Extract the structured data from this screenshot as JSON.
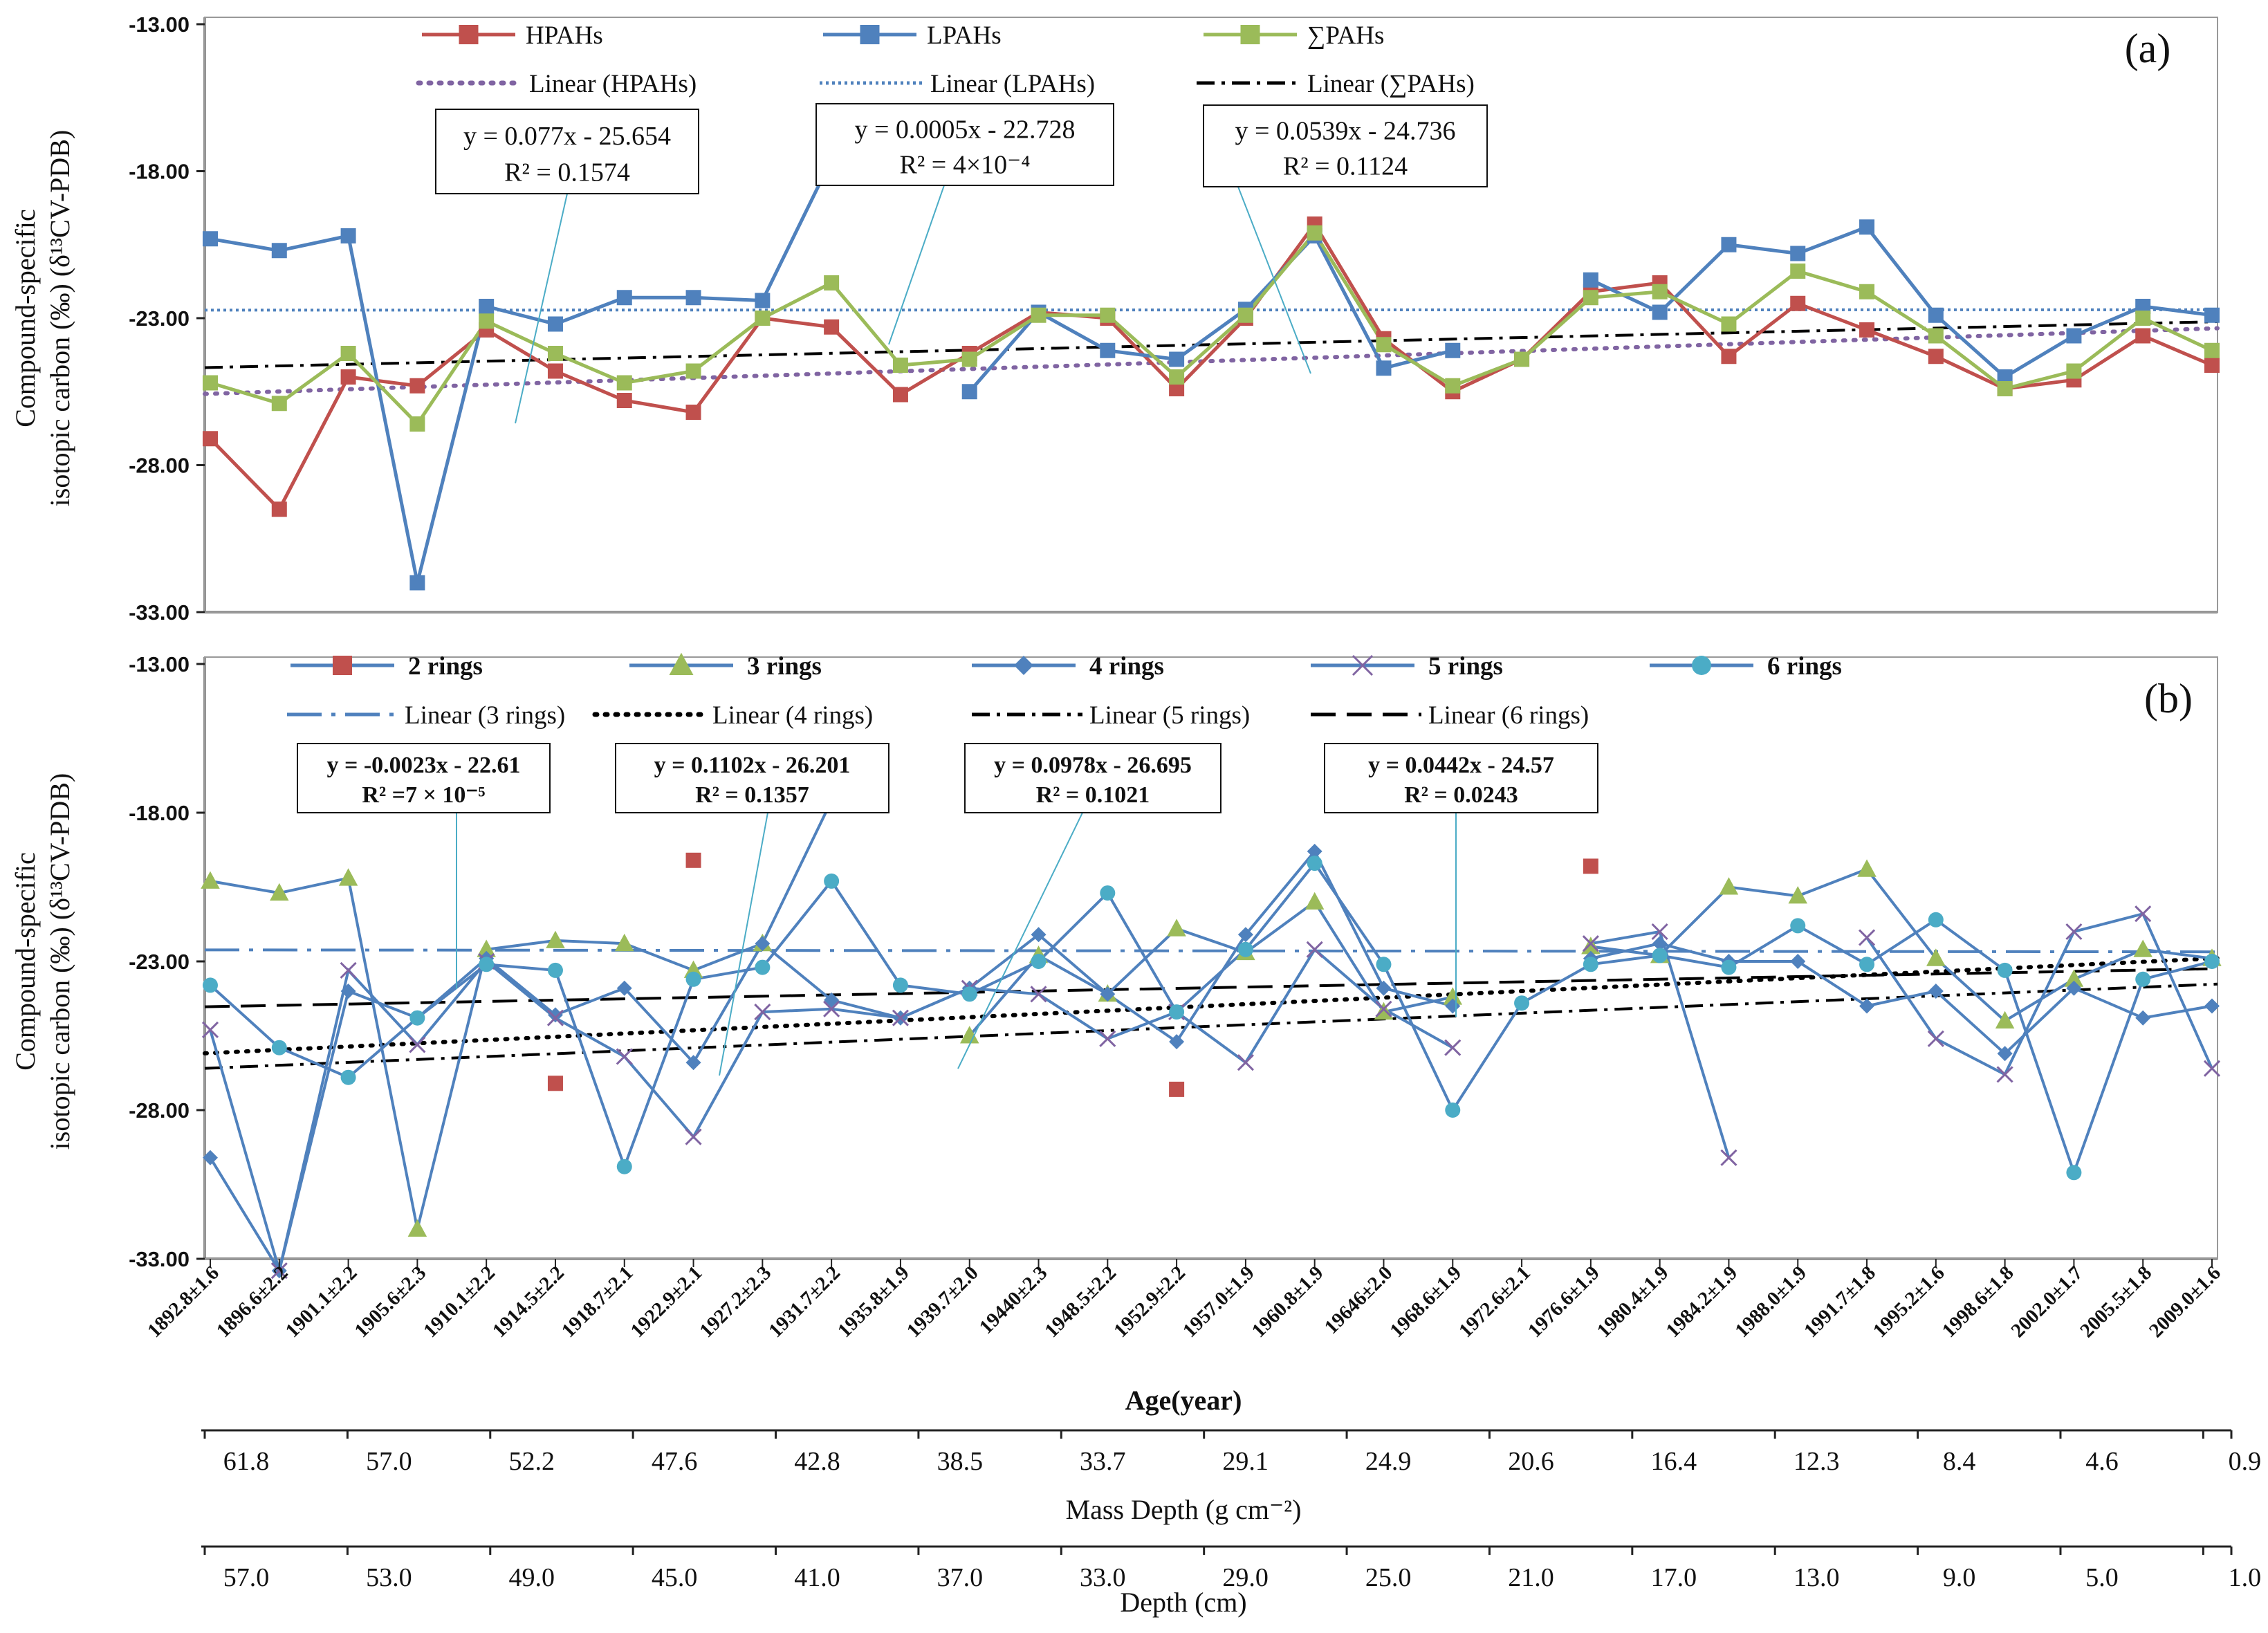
{
  "chart_data": [
    {
      "id": "a",
      "type": "line",
      "panel_label": "(a)",
      "ylabel_line1": "Compound-specific",
      "ylabel_line2": "isotopic carbon (‰) (δ¹³CV-PDB)",
      "ylim": [
        -33.0,
        -13.0
      ],
      "yticks": [
        "-13.00",
        "-18.00",
        "-23.00",
        "-28.00",
        "-33.00"
      ],
      "series": [
        {
          "name": "HPAHs",
          "color": "#C0504D",
          "marker": "square",
          "values": [
            -27.1,
            -29.5,
            -25.0,
            -25.3,
            -23.4,
            -24.8,
            -25.8,
            -26.2,
            -23.0,
            -23.3,
            -25.6,
            -24.2,
            -22.8,
            -23.0,
            -25.4,
            -23.0,
            -19.8,
            -23.7,
            -25.5,
            -24.4,
            -22.1,
            -21.8,
            -24.3,
            -22.5,
            -23.4,
            -24.3,
            -25.4,
            -25.1,
            -23.6,
            -24.6
          ]
        },
        {
          "name": "LPAHs",
          "color": "#4F81BD",
          "marker": "square",
          "values": [
            -20.3,
            -20.7,
            -20.2,
            -32.0,
            -22.6,
            -23.2,
            -22.3,
            -22.3,
            -22.4,
            -17.6,
            null,
            -25.5,
            -22.8,
            -24.1,
            -24.4,
            -22.7,
            -20.2,
            -24.7,
            -24.1,
            null,
            -21.7,
            -22.8,
            -20.5,
            -20.8,
            -19.9,
            -22.9,
            -25.0,
            -23.6,
            -22.6,
            -22.9
          ]
        },
        {
          "name": "∑PAHs",
          "color": "#9BBB59",
          "marker": "square",
          "values": [
            -25.2,
            -25.9,
            -24.2,
            -26.6,
            -23.1,
            -24.2,
            -25.2,
            -24.8,
            -23.0,
            -21.8,
            -24.6,
            -24.4,
            -22.9,
            -22.9,
            -25.0,
            -22.9,
            -20.1,
            -23.9,
            -25.3,
            -24.4,
            -22.3,
            -22.1,
            -23.2,
            -21.4,
            -22.1,
            -23.6,
            -25.4,
            -24.8,
            -23.0,
            -24.1
          ]
        }
      ],
      "trendlines": [
        {
          "name": "Linear (HPAHs)",
          "color": "#8064A2",
          "style": "dot",
          "slope": 0.077,
          "intercept": -25.654,
          "equation": "y = 0.077x - 25.654",
          "r2": "R² = 0.1574"
        },
        {
          "name": "Linear (LPAHs)",
          "color": "#4F81BD",
          "style": "fine-dot",
          "slope": 0.0005,
          "intercept": -22.728,
          "equation": "y = 0.0005x - 22.728",
          "r2": "R² = 4×10⁻⁴"
        },
        {
          "name": "Linear (∑PAHs)",
          "color": "#000000",
          "style": "dash-dot",
          "slope": 0.0539,
          "intercept": -24.736,
          "equation": "y = 0.0539x - 24.736",
          "r2": "R² = 0.1124"
        }
      ]
    },
    {
      "id": "b",
      "type": "line",
      "panel_label": "(b)",
      "ylabel_line1": "Compound-specific",
      "ylabel_line2": "isotopic carbon (‰) (δ¹³CV-PDB)",
      "ylim": [
        -33.0,
        -13.0
      ],
      "yticks": [
        "-13.00",
        "-18.00",
        "-23.00",
        "-28.00",
        "-33.00"
      ],
      "series": [
        {
          "name": "2 rings",
          "color": "#C0504D",
          "marker": "square",
          "no_line": true,
          "values": [
            null,
            null,
            null,
            null,
            null,
            -27.1,
            null,
            -19.6,
            null,
            null,
            null,
            null,
            null,
            null,
            -27.3,
            null,
            null,
            null,
            null,
            null,
            -19.8,
            null,
            null,
            null,
            null,
            null,
            null,
            null,
            null,
            null
          ]
        },
        {
          "name": "3 rings",
          "color": "#9BBB59",
          "marker": "triangle",
          "line_color": "#4F81BD",
          "values": [
            -20.3,
            -20.7,
            -20.2,
            -32.0,
            -22.6,
            -22.3,
            -22.4,
            -23.3,
            -22.4,
            -17.6,
            null,
            -25.5,
            -22.8,
            -24.1,
            -21.9,
            -22.7,
            -21.0,
            -24.7,
            -24.2,
            null,
            -22.5,
            -22.8,
            -20.5,
            -20.8,
            -19.9,
            -22.9,
            -25.0,
            -23.6,
            -22.6,
            -22.9
          ]
        },
        {
          "name": "4 rings",
          "color": "#4F81BD",
          "marker": "diamond",
          "values": [
            -29.6,
            -33.4,
            -24.0,
            -24.9,
            -22.9,
            -24.8,
            -23.9,
            -26.4,
            -22.4,
            -24.3,
            -24.9,
            -23.9,
            -22.1,
            -24.1,
            -25.7,
            -22.1,
            -19.3,
            -23.9,
            -24.5,
            null,
            -22.9,
            -22.4,
            -23.0,
            -23.0,
            -24.5,
            -24.0,
            -26.1,
            -23.9,
            -24.9,
            -24.5
          ]
        },
        {
          "name": "5 rings",
          "color": "#8064A2",
          "marker": "x",
          "line_color": "#4F81BD",
          "values": [
            -25.3,
            -33.4,
            -23.3,
            -25.8,
            -23.0,
            -24.9,
            -26.2,
            -28.9,
            -24.7,
            -24.6,
            -24.9,
            -23.9,
            -24.1,
            -25.6,
            -24.7,
            -26.4,
            -22.6,
            -24.6,
            -25.9,
            null,
            -22.4,
            -22.0,
            -29.6,
            null,
            -22.2,
            -25.6,
            -26.8,
            -22.0,
            -21.4,
            -26.6
          ]
        },
        {
          "name": "6 rings",
          "color": "#4BACC6",
          "marker": "circle",
          "line_color": "#4F81BD",
          "values": [
            -23.8,
            -25.9,
            -26.9,
            -24.9,
            -23.1,
            -23.3,
            -29.9,
            -23.6,
            -23.2,
            -20.3,
            -23.8,
            -24.1,
            -23.0,
            -20.7,
            -24.7,
            -22.6,
            -19.7,
            -23.1,
            -28.0,
            -24.4,
            -23.1,
            -22.8,
            -23.2,
            -21.8,
            -23.1,
            -21.6,
            -23.3,
            -30.1,
            -23.6,
            -23.0
          ]
        }
      ],
      "trendlines": [
        {
          "name": "Linear (3 rings)",
          "color": "#4F81BD",
          "style": "long-dash-dot",
          "slope": -0.0023,
          "intercept": -22.61,
          "equation": "y = -0.0023x - 22.61",
          "r2": "R² =7 × 10⁻⁵"
        },
        {
          "name": "Linear (4 rings)",
          "color": "#000000",
          "style": "dot",
          "slope": 0.1102,
          "intercept": -26.201,
          "equation": "y = 0.1102x - 26.201",
          "r2": "R² = 0.1357"
        },
        {
          "name": "Linear (5 rings)",
          "color": "#000000",
          "style": "dash-dot",
          "slope": 0.0978,
          "intercept": -26.695,
          "equation": "y = 0.0978x - 26.695",
          "r2": "R² = 0.1021"
        },
        {
          "name": "Linear (6 rings)",
          "color": "#000000",
          "style": "dash",
          "slope": 0.0442,
          "intercept": -24.57,
          "equation": "y = 0.0442x - 24.57",
          "r2": "R² = 0.0243"
        }
      ],
      "x_categories": [
        "1892.8±1.6",
        "1896.6±2.2",
        "1901.1±2.2",
        "1905.6±2.3",
        "1910.1±2.2",
        "1914.5±2.2",
        "1918.7±2.1",
        "1922.9±2.1",
        "1927.2±2.3",
        "1931.7±2.2",
        "1935.8±1.9",
        "1939.7±2.0",
        "19440±2.3",
        "1948.5±2.2",
        "1952.9±2.2",
        "1957.0±1.9",
        "1960.8±1.9",
        "19646±2.0",
        "1968.6±1.9",
        "1972.6±2.1",
        "1976.6±1.9",
        "1980.4±1.9",
        "1984.2±1.9",
        "1988.0±1.9",
        "1991.7±1.8",
        "1995.2±1.6",
        "1998.6±1.8",
        "2002.0±1.7",
        "2005.5±1.8",
        "2009.0±1.6"
      ],
      "xlabel": "Age(year)"
    }
  ],
  "secondary_axes": [
    {
      "label": "Mass Depth (g cm⁻²)",
      "ticks": [
        "61.8",
        "57.0",
        "52.2",
        "47.6",
        "42.8",
        "38.5",
        "33.7",
        "29.1",
        "24.9",
        "20.6",
        "16.4",
        "12.3",
        "8.4",
        "4.6",
        "0.9"
      ]
    },
    {
      "label": "Depth (cm)",
      "ticks": [
        "57.0",
        "53.0",
        "49.0",
        "45.0",
        "41.0",
        "37.0",
        "33.0",
        "29.0",
        "25.0",
        "21.0",
        "17.0",
        "13.0",
        "9.0",
        "5.0",
        "1.0"
      ]
    }
  ]
}
